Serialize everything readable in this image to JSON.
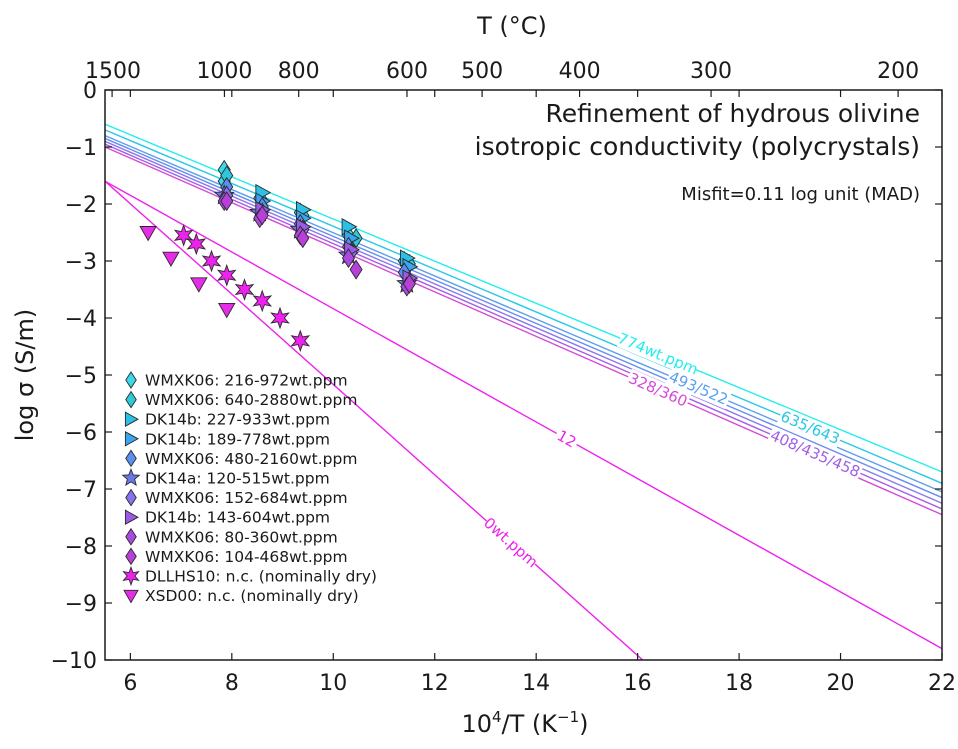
{
  "chart_data": {
    "type": "line",
    "title_lines": [
      "Refinement of hydrous olivine",
      "isotropic conductivity (polycrystals)"
    ],
    "annotation": "Misfit=0.11 log unit (MAD)",
    "xlabel": {
      "base": "10",
      "sup": "4",
      "mid": "/T (K",
      "sup2": "−1",
      "end": ")"
    },
    "ylabel": "log σ (S/m)",
    "top_axis_label": "T (°C)",
    "xlim": [
      5.5,
      22
    ],
    "ylim": [
      -10,
      0
    ],
    "xticks": [
      6,
      8,
      10,
      12,
      14,
      16,
      18,
      20,
      22
    ],
    "yticks": [
      0,
      -1,
      -2,
      -3,
      -4,
      -5,
      -6,
      -7,
      -8,
      -9,
      -10
    ],
    "ytick_labels": [
      "0",
      "−1",
      "−2",
      "−3",
      "−4",
      "−5",
      "−6",
      "−7",
      "−8",
      "−9",
      "−10"
    ],
    "top_ticks_celsius": [
      1500,
      1000,
      800,
      600,
      500,
      400,
      300,
      200
    ],
    "top_tick_labels": [
      "1500",
      "1000",
      "800",
      "600",
      "500",
      "400",
      "300",
      "200"
    ],
    "model_curves": [
      {
        "label": "774wt.ppm",
        "color": "#22eeee",
        "points": [
          [
            5.5,
            -0.6
          ],
          [
            22,
            -6.7
          ]
        ],
        "label_at": 16.4
      },
      {
        "label": "635/643",
        "color": "#28c8e6",
        "points": [
          [
            5.5,
            -0.7
          ],
          [
            22,
            -6.9
          ]
        ],
        "label_at": 19.4
      },
      {
        "label": "493/522",
        "color": "#5aa0ee",
        "points": [
          [
            5.5,
            -0.8
          ],
          [
            22,
            -7.05
          ]
        ],
        "label_at": 17.2
      },
      {
        "label": "",
        "color": "#6a8cf0",
        "points": [
          [
            5.5,
            -0.85
          ],
          [
            22,
            -7.15
          ]
        ],
        "label_at": null
      },
      {
        "label": "",
        "color": "#8a78ee",
        "points": [
          [
            5.5,
            -0.9
          ],
          [
            22,
            -7.25
          ]
        ],
        "label_at": null
      },
      {
        "label": "408/435/458",
        "color": "#a060e6",
        "points": [
          [
            5.5,
            -0.95
          ],
          [
            22,
            -7.35
          ]
        ],
        "label_at": 19.5
      },
      {
        "label": "328/360",
        "color": "#d64ad6",
        "points": [
          [
            5.5,
            -1.0
          ],
          [
            22,
            -7.45
          ]
        ],
        "label_at": 16.4
      },
      {
        "label": "12",
        "color": "#ee22ee",
        "points": [
          [
            5.5,
            -1.6
          ],
          [
            22,
            -9.8
          ]
        ],
        "label_at": 14.6
      },
      {
        "label": "0wt.ppm",
        "color": "#ee22ee",
        "points": [
          [
            5.5,
            -1.6
          ],
          [
            16.1,
            -10
          ]
        ],
        "label_at": 13.5
      }
    ],
    "series": [
      {
        "name": "WMXK06: 216-972wt.ppm",
        "marker": "diamond",
        "color": "#3ad8e8",
        "points": [
          [
            7.85,
            -1.4
          ],
          [
            7.85,
            -1.6
          ],
          [
            8.55,
            -1.9
          ],
          [
            9.35,
            -2.15
          ],
          [
            10.3,
            -2.55
          ],
          [
            11.4,
            -3.0
          ]
        ]
      },
      {
        "name": "WMXK06: 640-2880wt.ppm",
        "marker": "diamond",
        "color": "#2ec8da",
        "points": [
          [
            7.9,
            -1.5
          ],
          [
            8.6,
            -1.95
          ],
          [
            9.4,
            -2.2
          ],
          [
            10.45,
            -2.6
          ],
          [
            11.5,
            -3.05
          ]
        ]
      },
      {
        "name": "DK14b: 227-933wt.ppm",
        "marker": "triangle-right",
        "color": "#2cc0e6",
        "points": [
          [
            8.6,
            -1.8
          ],
          [
            9.4,
            -2.1
          ],
          [
            10.3,
            -2.4
          ],
          [
            11.45,
            -2.95
          ]
        ]
      },
      {
        "name": "DK14b: 189-778wt.ppm",
        "marker": "triangle-right",
        "color": "#3aa6ee",
        "points": [
          [
            8.6,
            -1.95
          ],
          [
            9.4,
            -2.25
          ],
          [
            10.35,
            -2.6
          ],
          [
            11.5,
            -3.1
          ]
        ]
      },
      {
        "name": "WMXK06: 480-2160wt.ppm",
        "marker": "diamond",
        "color": "#5a8ef0",
        "points": [
          [
            7.9,
            -1.7
          ],
          [
            8.6,
            -2.05
          ],
          [
            9.35,
            -2.35
          ],
          [
            10.3,
            -2.75
          ],
          [
            11.4,
            -3.2
          ]
        ]
      },
      {
        "name": "DK14a: 120-515wt.ppm",
        "marker": "star5",
        "color": "#6a78e6",
        "points": [
          [
            7.85,
            -1.85
          ],
          [
            8.55,
            -2.15
          ],
          [
            9.35,
            -2.45
          ],
          [
            10.3,
            -2.9
          ],
          [
            11.45,
            -3.4
          ]
        ]
      },
      {
        "name": "WMXK06: 152-684wt.ppm",
        "marker": "diamond",
        "color": "#8a70ee",
        "points": [
          [
            7.9,
            -1.85
          ],
          [
            8.6,
            -2.15
          ],
          [
            9.4,
            -2.45
          ],
          [
            10.35,
            -2.85
          ],
          [
            11.5,
            -3.35
          ]
        ]
      },
      {
        "name": "DK14b: 143-604wt.ppm",
        "marker": "triangle-right",
        "color": "#9a5ae6",
        "points": [
          [
            8.6,
            -2.1
          ],
          [
            9.4,
            -2.4
          ],
          [
            10.35,
            -2.8
          ],
          [
            11.5,
            -3.3
          ]
        ]
      },
      {
        "name": "WMXK06: 80-360wt.ppm",
        "marker": "diamond",
        "color": "#a84ae0",
        "points": [
          [
            7.85,
            -1.95
          ],
          [
            8.55,
            -2.25
          ],
          [
            9.35,
            -2.55
          ],
          [
            10.3,
            -2.95
          ],
          [
            11.45,
            -3.45
          ]
        ]
      },
      {
        "name": "WMXK06: 104-468wt.ppm",
        "marker": "diamond",
        "color": "#b640d8",
        "points": [
          [
            7.9,
            -1.95
          ],
          [
            8.6,
            -2.2
          ],
          [
            9.4,
            -2.6
          ],
          [
            10.45,
            -3.15
          ],
          [
            11.5,
            -3.4
          ]
        ]
      },
      {
        "name": "DLLHS10: n.c. (nominally dry)",
        "marker": "star6",
        "color": "#ee22ee",
        "points": [
          [
            7.05,
            -2.55
          ],
          [
            7.3,
            -2.7
          ],
          [
            7.6,
            -3.0
          ],
          [
            7.9,
            -3.25
          ],
          [
            8.25,
            -3.5
          ],
          [
            8.6,
            -3.7
          ],
          [
            8.95,
            -4.0
          ],
          [
            9.35,
            -4.4
          ]
        ]
      },
      {
        "name": "XSD00: n.c. (nominally dry)",
        "marker": "triangle-down",
        "color": "#e62ce6",
        "points": [
          [
            6.35,
            -2.5
          ],
          [
            6.8,
            -2.95
          ],
          [
            7.35,
            -3.4
          ],
          [
            7.9,
            -3.85
          ]
        ]
      }
    ],
    "legend_position": "bottom-left",
    "grid": false
  }
}
